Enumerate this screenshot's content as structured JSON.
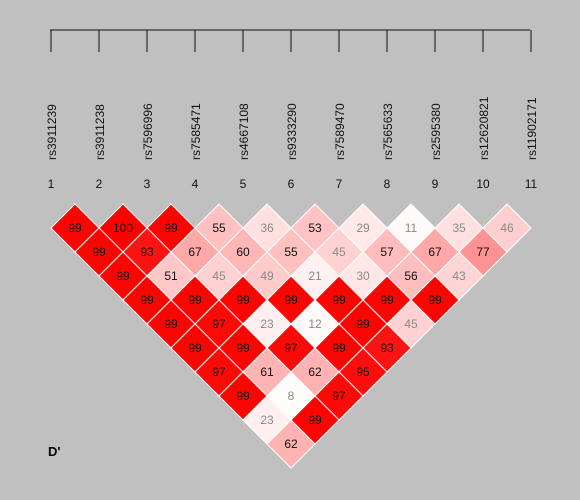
{
  "snps": [
    "rs3911239",
    "rs3911238",
    "rs7596996",
    "rs7585471",
    "rs4667108",
    "rs9333290",
    "rs7589470",
    "rs7565633",
    "rs2595380",
    "rs12620821",
    "rs11902171"
  ],
  "indices": [
    "1",
    "2",
    "3",
    "4",
    "5",
    "6",
    "7",
    "8",
    "9",
    "10",
    "11"
  ],
  "statistic_label": "D'",
  "colors": {
    "strong": "#ff0000",
    "weak": "#ffffff",
    "background": "#c0c0c0",
    "text_dark": "#111111",
    "text_light": "#8a8a8a"
  },
  "ld_matrix_rows": [
    [
      99,
      100,
      99,
      55,
      36,
      53,
      29,
      11,
      35,
      46
    ],
    [
      99,
      93,
      67,
      60,
      55,
      45,
      57,
      67,
      77
    ],
    [
      99,
      51,
      45,
      49,
      21,
      30,
      56,
      43
    ],
    [
      99,
      99,
      99,
      99,
      99,
      99,
      99
    ],
    [
      99,
      97,
      23,
      12,
      99,
      45
    ],
    [
      99,
      99,
      97,
      99,
      93
    ],
    [
      97,
      61,
      62,
      95
    ],
    [
      99,
      8,
      97
    ],
    [
      23,
      99
    ],
    [
      62
    ]
  ]
}
